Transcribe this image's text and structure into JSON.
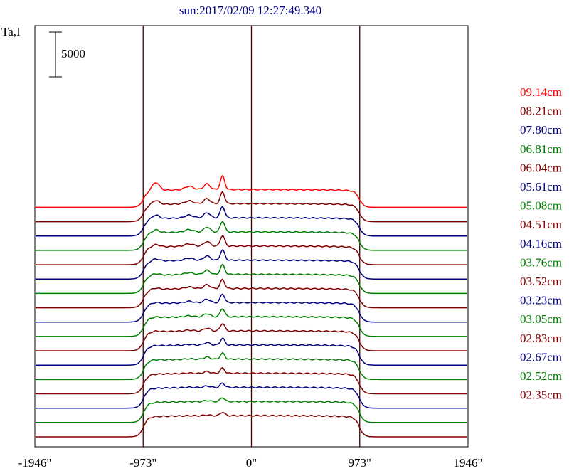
{
  "chart_data": {
    "type": "line",
    "title": "sun:2017/02/09 12:27:49.340",
    "ylabel": "Ta,I",
    "scale_bar_label": "5000",
    "scale_bar_value": 5000,
    "x_ticks": [
      -1946,
      -973,
      0,
      973,
      1946
    ],
    "x_tick_labels": [
      "-1946\"",
      "-973\"",
      "0\"",
      "973\"",
      "1946\""
    ],
    "xlim": [
      -1946,
      1946
    ],
    "limb_markers": [
      -973,
      0,
      973
    ],
    "grid": false,
    "legend_position": "right",
    "series_offset_step": 1600,
    "colors": {
      "red": "#ff0000",
      "maroon": "#800000",
      "navy": "#000080",
      "green": "#008000",
      "axis": "#000000",
      "marker": "#400000"
    },
    "series": [
      {
        "name": "09.14cm",
        "color": "#ff0000",
        "limb_peak": 0.28,
        "source_peak": 0.36,
        "source_peak2": 0.18,
        "source_peak3": 0.2
      },
      {
        "name": "08.21cm",
        "color": "#800000",
        "limb_peak": 0.14,
        "source_peak": 0.31,
        "source_peak2": 0.16,
        "source_peak3": 0.17
      },
      {
        "name": "07.80cm",
        "color": "#000080",
        "limb_peak": 0.12,
        "source_peak": 0.3,
        "source_peak2": 0.16,
        "source_peak3": 0.16
      },
      {
        "name": "06.81cm",
        "color": "#008000",
        "limb_peak": 0.1,
        "source_peak": 0.28,
        "source_peak2": 0.15,
        "source_peak3": 0.14
      },
      {
        "name": "06.04cm",
        "color": "#800000",
        "limb_peak": 0.08,
        "source_peak": 0.27,
        "source_peak2": 0.14,
        "source_peak3": 0.13
      },
      {
        "name": "05.61cm",
        "color": "#000080",
        "limb_peak": 0.07,
        "source_peak": 0.26,
        "source_peak2": 0.13,
        "source_peak3": 0.12
      },
      {
        "name": "05.08cm",
        "color": "#008000",
        "limb_peak": 0.05,
        "source_peak": 0.24,
        "source_peak2": 0.12,
        "source_peak3": 0.1
      },
      {
        "name": "04.51cm",
        "color": "#800000",
        "limb_peak": 0.04,
        "source_peak": 0.22,
        "source_peak2": 0.11,
        "source_peak3": 0.09
      },
      {
        "name": "04.16cm",
        "color": "#000080",
        "limb_peak": 0.03,
        "source_peak": 0.21,
        "source_peak2": 0.1,
        "source_peak3": 0.08
      },
      {
        "name": "03.76cm",
        "color": "#008000",
        "limb_peak": 0.02,
        "source_peak": 0.2,
        "source_peak2": 0.09,
        "source_peak3": 0.06
      },
      {
        "name": "03.52cm",
        "color": "#800000",
        "limb_peak": 0.02,
        "source_peak": 0.18,
        "source_peak2": 0.08,
        "source_peak3": 0.05
      },
      {
        "name": "03.23cm",
        "color": "#000080",
        "limb_peak": 0.01,
        "source_peak": 0.16,
        "source_peak2": 0.07,
        "source_peak3": 0.04
      },
      {
        "name": "03.05cm",
        "color": "#008000",
        "limb_peak": 0.01,
        "source_peak": 0.14,
        "source_peak2": 0.06,
        "source_peak3": 0.03
      },
      {
        "name": "02.83cm",
        "color": "#800000",
        "limb_peak": 0.0,
        "source_peak": 0.12,
        "source_peak2": 0.05,
        "source_peak3": 0.02
      },
      {
        "name": "02.67cm",
        "color": "#000080",
        "limb_peak": 0.0,
        "source_peak": 0.1,
        "source_peak2": 0.04,
        "source_peak3": 0.02
      },
      {
        "name": "02.52cm",
        "color": "#008000",
        "limb_peak": 0.0,
        "source_peak": 0.09,
        "source_peak2": 0.03,
        "source_peak3": 0.01
      },
      {
        "name": "02.35cm",
        "color": "#800000",
        "limb_peak": 0.0,
        "source_peak": 0.08,
        "source_peak2": 0.02,
        "source_peak3": 0.01
      }
    ]
  }
}
